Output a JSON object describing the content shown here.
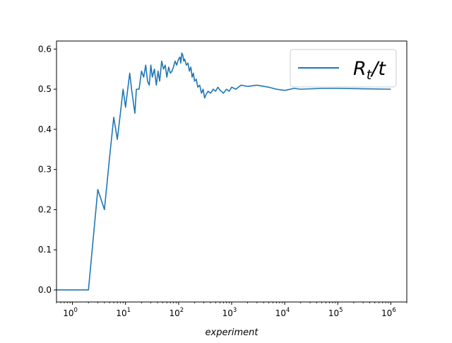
{
  "chart_data": {
    "type": "line",
    "title": "",
    "xlabel": "experiment",
    "ylabel": "",
    "x_scale": "log",
    "xlim": [
      0.5,
      2000000
    ],
    "ylim": [
      -0.03,
      0.62
    ],
    "x_ticks": [
      {
        "value": 1,
        "base": "10",
        "exp": "0"
      },
      {
        "value": 10,
        "base": "10",
        "exp": "1"
      },
      {
        "value": 100,
        "base": "10",
        "exp": "2"
      },
      {
        "value": 1000,
        "base": "10",
        "exp": "3"
      },
      {
        "value": 10000,
        "base": "10",
        "exp": "4"
      },
      {
        "value": 100000,
        "base": "10",
        "exp": "5"
      },
      {
        "value": 1000000,
        "base": "10",
        "exp": "6"
      }
    ],
    "y_ticks": [
      {
        "value": 0.0,
        "label": "0.0"
      },
      {
        "value": 0.1,
        "label": "0.1"
      },
      {
        "value": 0.2,
        "label": "0.2"
      },
      {
        "value": 0.3,
        "label": "0.3"
      },
      {
        "value": 0.4,
        "label": "0.4"
      },
      {
        "value": 0.5,
        "label": "0.5"
      },
      {
        "value": 0.6,
        "label": "0.6"
      }
    ],
    "grid": false,
    "legend": {
      "position": "top-right",
      "label_main": "R",
      "label_sub": "t",
      "label_tail": "/t"
    },
    "series": [
      {
        "name": "R_t/t",
        "color": "#1f77b4",
        "points": [
          [
            0.5,
            0.0
          ],
          [
            1,
            0.0
          ],
          [
            2,
            0.0
          ],
          [
            3,
            0.25
          ],
          [
            4,
            0.2
          ],
          [
            5,
            0.33
          ],
          [
            6,
            0.43
          ],
          [
            7,
            0.375
          ],
          [
            8,
            0.44
          ],
          [
            9,
            0.5
          ],
          [
            10,
            0.455
          ],
          [
            11,
            0.5
          ],
          [
            12,
            0.54
          ],
          [
            13,
            0.5
          ],
          [
            15,
            0.44
          ],
          [
            16,
            0.5
          ],
          [
            18,
            0.5
          ],
          [
            20,
            0.545
          ],
          [
            22,
            0.53
          ],
          [
            24,
            0.56
          ],
          [
            26,
            0.52
          ],
          [
            28,
            0.51
          ],
          [
            30,
            0.56
          ],
          [
            32,
            0.53
          ],
          [
            35,
            0.55
          ],
          [
            38,
            0.51
          ],
          [
            41,
            0.545
          ],
          [
            44,
            0.52
          ],
          [
            48,
            0.57
          ],
          [
            52,
            0.55
          ],
          [
            56,
            0.56
          ],
          [
            60,
            0.53
          ],
          [
            65,
            0.555
          ],
          [
            70,
            0.54
          ],
          [
            75,
            0.545
          ],
          [
            80,
            0.555
          ],
          [
            86,
            0.57
          ],
          [
            92,
            0.56
          ],
          [
            100,
            0.575
          ],
          [
            106,
            0.58
          ],
          [
            110,
            0.565
          ],
          [
            115,
            0.59
          ],
          [
            120,
            0.585
          ],
          [
            125,
            0.57
          ],
          [
            130,
            0.575
          ],
          [
            140,
            0.56
          ],
          [
            150,
            0.565
          ],
          [
            160,
            0.545
          ],
          [
            170,
            0.555
          ],
          [
            180,
            0.53
          ],
          [
            190,
            0.54
          ],
          [
            200,
            0.52
          ],
          [
            215,
            0.525
          ],
          [
            230,
            0.505
          ],
          [
            250,
            0.51
          ],
          [
            270,
            0.49
          ],
          [
            290,
            0.5
          ],
          [
            310,
            0.478
          ],
          [
            330,
            0.487
          ],
          [
            360,
            0.495
          ],
          [
            400,
            0.49
          ],
          [
            450,
            0.5
          ],
          [
            500,
            0.495
          ],
          [
            550,
            0.505
          ],
          [
            600,
            0.498
          ],
          [
            700,
            0.49
          ],
          [
            800,
            0.5
          ],
          [
            900,
            0.495
          ],
          [
            1000,
            0.505
          ],
          [
            1200,
            0.5
          ],
          [
            1500,
            0.51
          ],
          [
            2000,
            0.507
          ],
          [
            3000,
            0.51
          ],
          [
            5000,
            0.505
          ],
          [
            7000,
            0.5
          ],
          [
            10000,
            0.497
          ],
          [
            15000,
            0.502
          ],
          [
            20000,
            0.5
          ],
          [
            50000,
            0.502
          ],
          [
            100000,
            0.502
          ],
          [
            300000,
            0.501
          ],
          [
            1000000,
            0.5
          ]
        ]
      }
    ]
  }
}
